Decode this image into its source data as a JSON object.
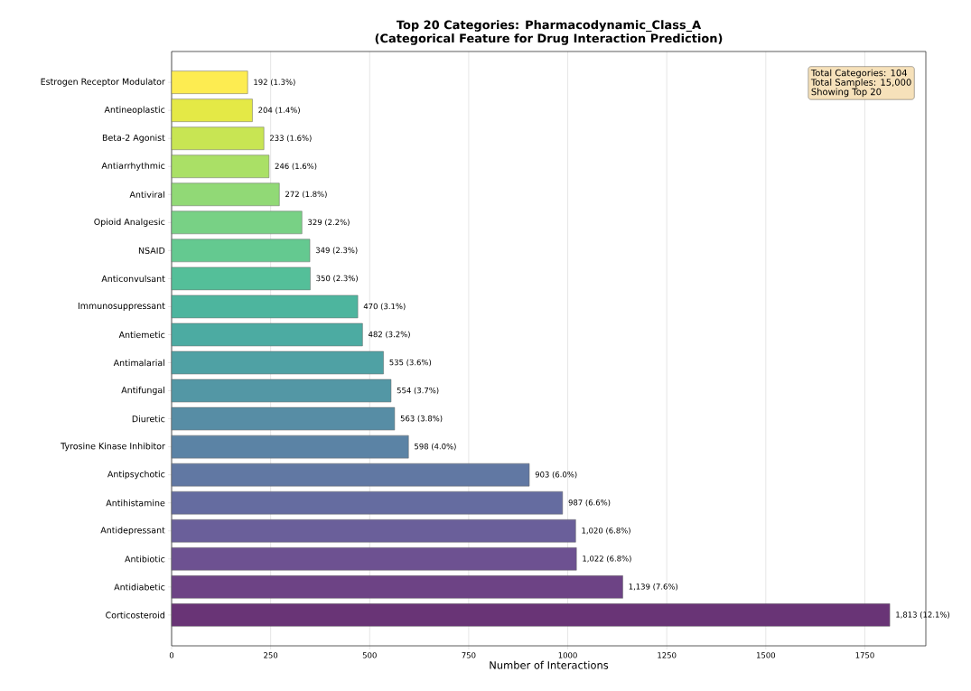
{
  "chart_data": {
    "type": "bar",
    "orientation": "horizontal",
    "title": "Top 20 Categories: Pharmacodynamic_Class_A\n(Categorical Feature for Drug Interaction Prediction)",
    "xlabel": "Number of Interactions",
    "categories": [
      "Estrogen Receptor Modulator",
      "Antineoplastic",
      "Beta-2 Agonist",
      "Antiarrhythmic",
      "Antiviral",
      "Opioid Analgesic",
      "NSAID",
      "Anticonvulsant",
      "Immunosuppressant",
      "Antiemetic",
      "Antimalarial",
      "Antifungal",
      "Diuretic",
      "Tyrosine Kinase Inhibitor",
      "Antipsychotic",
      "Antihistamine",
      "Antidepressant",
      "Antibiotic",
      "Antidiabetic",
      "Corticosteroid"
    ],
    "values": [
      192,
      204,
      233,
      246,
      272,
      329,
      349,
      350,
      470,
      482,
      535,
      554,
      563,
      598,
      903,
      987,
      1020,
      1022,
      1139,
      1813
    ],
    "value_labels": [
      "192 (1.3%)",
      "204 (1.4%)",
      "233 (1.6%)",
      "246 (1.6%)",
      "272 (1.8%)",
      "329 (2.2%)",
      "349 (2.3%)",
      "350 (2.3%)",
      "470 (3.1%)",
      "482 (3.2%)",
      "535 (3.6%)",
      "554 (3.7%)",
      "563 (3.8%)",
      "598 (4.0%)",
      "903 (6.0%)",
      "987 (6.6%)",
      "1,020 (6.8%)",
      "1,022 (6.8%)",
      "1,139 (7.6%)",
      "1,813 (12.1%)"
    ],
    "colors": [
      "#fdec51",
      "#e4e946",
      "#c8e553",
      "#aae066",
      "#91d976",
      "#78d185",
      "#64c990",
      "#54bf99",
      "#4db59e",
      "#4caba2",
      "#4fa1a4",
      "#5397a5",
      "#578da5",
      "#5b83a5",
      "#6178a3",
      "#656ca0",
      "#6a5f9a",
      "#6d5191",
      "#6d4385",
      "#693476"
    ],
    "xlim": [
      0,
      1904
    ],
    "xticks": [
      0,
      250,
      500,
      750,
      1000,
      1250,
      1500,
      1750
    ],
    "grid": "x",
    "annotations": [
      "Total Categories: 104",
      "Total Samples: 15,000",
      "Showing Top 20"
    ]
  }
}
